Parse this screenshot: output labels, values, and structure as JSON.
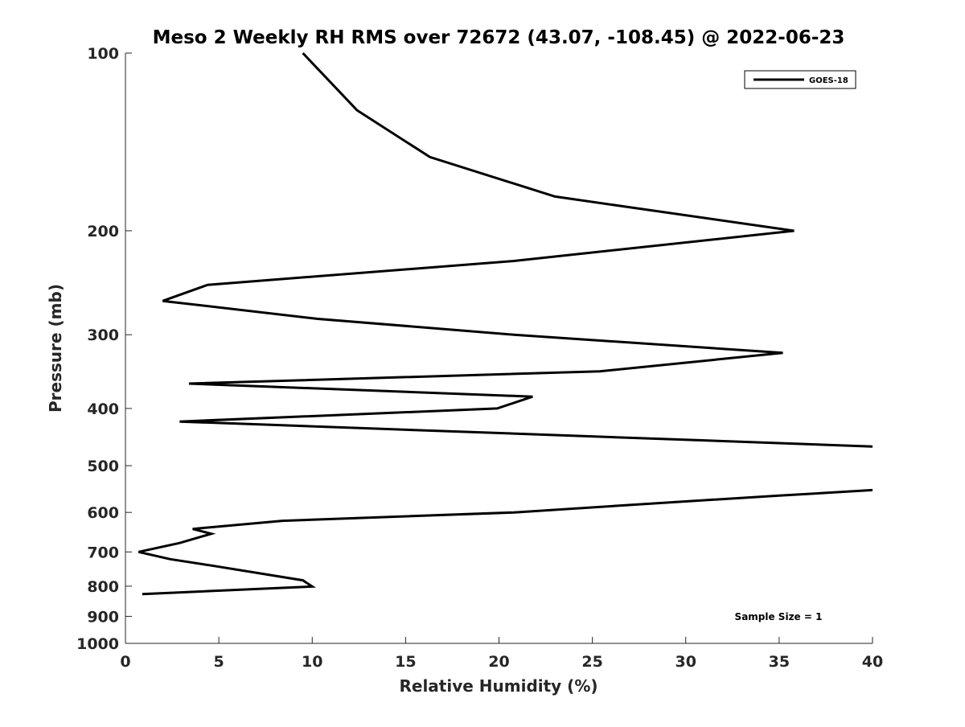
{
  "chart_data": {
    "type": "line",
    "title": "Meso 2 Weekly RH RMS over 72672 (43.07, -108.45) @ 2022-06-23",
    "xlabel": "Relative Humidity (%)",
    "ylabel": "Pressure (mb)",
    "xlim": [
      0,
      40
    ],
    "ylim": [
      100,
      1000
    ],
    "y_scale": "log",
    "y_reversed": true,
    "grid": false,
    "x_ticks": [
      0,
      5,
      10,
      15,
      20,
      25,
      30,
      35,
      40
    ],
    "y_ticks": [
      100,
      200,
      300,
      400,
      500,
      600,
      700,
      800,
      900,
      1000
    ],
    "legend_position": "top-right",
    "annotation": "Sample Size = 1",
    "series": [
      {
        "name": "GOES-18",
        "color": "#000000",
        "x": [
          9.5,
          12.4,
          16.3,
          23.0,
          35.8,
          20.8,
          4.4,
          2.0,
          10.3,
          20.8,
          35.2,
          25.4,
          3.4,
          21.8,
          19.9,
          2.9,
          40.0
        ],
        "y": [
          100,
          125,
          150,
          175,
          200,
          225,
          247,
          263,
          282,
          300,
          322,
          346,
          363,
          382,
          400,
          421,
          464
        ]
      },
      {
        "name": "GOES-18",
        "color": "#000000",
        "x": [
          40.0,
          35.0,
          29.9,
          20.8,
          8.4,
          3.6,
          4.6,
          2.9,
          0.7,
          2.4,
          4.6,
          9.5,
          10.0,
          0.9
        ],
        "y": [
          550,
          562,
          575,
          600,
          620,
          640,
          652,
          676,
          700,
          720,
          738,
          782,
          801,
          825
        ]
      }
    ]
  }
}
